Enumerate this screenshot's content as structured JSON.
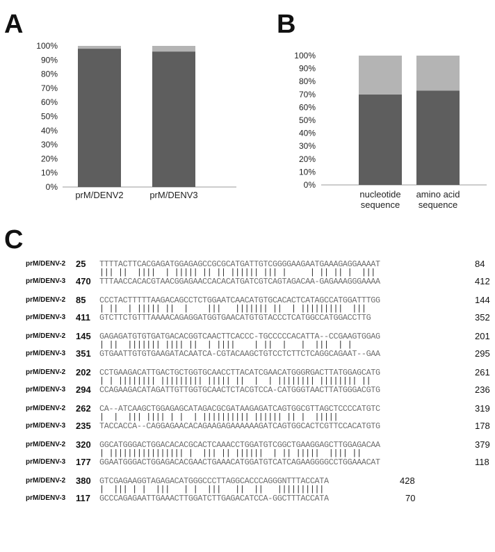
{
  "panels": {
    "a": "A",
    "b": "B",
    "c": "C"
  },
  "chart_data": [
    {
      "type": "bar",
      "stacked": true,
      "categories": [
        "prM/DENV2",
        "prM/DENV3"
      ],
      "series": [
        {
          "values": [
            98,
            96
          ],
          "color": "#5e5e5e"
        },
        {
          "values": [
            2,
            4
          ],
          "color": "#b4b4b4"
        }
      ],
      "ylim": [
        0,
        100
      ],
      "yticks": [
        "0%",
        "10%",
        "20%",
        "30%",
        "40%",
        "50%",
        "60%",
        "70%",
        "80%",
        "90%",
        "100%"
      ],
      "title": "",
      "xlabel": "",
      "ylabel": "",
      "grid": false
    },
    {
      "type": "bar",
      "stacked": true,
      "categories": [
        "nucleotide sequence",
        "amino acid sequence"
      ],
      "category_lines": [
        [
          "nucleotide",
          "sequence"
        ],
        [
          "amino acid",
          "sequence"
        ]
      ],
      "series": [
        {
          "values": [
            70,
            73
          ],
          "color": "#5e5e5e"
        },
        {
          "values": [
            30,
            27
          ],
          "color": "#b4b4b4"
        }
      ],
      "ylim": [
        0,
        100
      ],
      "yticks": [
        "0%",
        "10%",
        "20%",
        "30%",
        "40%",
        "50%",
        "60%",
        "70%",
        "80%",
        "90%",
        "100%"
      ],
      "title": "",
      "xlabel": "",
      "ylabel": "",
      "grid": false
    }
  ],
  "alignment": {
    "blocks": [
      {
        "name1": "prM/DENV-2",
        "start1": "25",
        "seq1": "TTTTACTTCACGAGATGGAGAGCCGCGCATGATTGTCGGGGAAGAATGAAAGAGGAAAAT",
        "end1": "84",
        "bars": "||| ||  ||||  | ||||| || || |||||| ||| |     | || || |  |||",
        "name2": "prM/DENV-3",
        "start2": "470",
        "seq2": "TTTAACCACACGTAACGGAGAACCACACATGATCGTCAGTAGACAA-GAGAAAGGGAAAA",
        "end2": "412"
      },
      {
        "name1": "prM/DENV-2",
        "start1": "85",
        "seq1": "CCCTACTTTTTAAGACAGCCTCTGGAATCAACATGTGCACACTCATAGCCATGGATTTGG",
        "end1": "144",
        "bars": "| ||  | ||||| ||  |    |||   ||||||| ||  | |||||||||  |||",
        "name2": "prM/DENV-3",
        "start2": "411",
        "seq2": "GTCTTCTGTTTAAAACAGAGGATGGTGAACATGTGTACCCTCATGGCCATGGACCTTG",
        "end2": "352"
      },
      {
        "name1": "prM/DENV-2",
        "start1": "145",
        "seq1": "GAGAGATGTGTGATGACACGGTCAACTTCACCC-TGCCCCCACATTA--CCGAAGTGGAG",
        "end1": "201",
        "bars": "| ||  ||||||| |||| ||  | ||||    | ||  |   |  |||  | |",
        "name2": "prM/DENV-3",
        "start2": "351",
        "seq2": "GTGAATTGTGTGAAGATACAATCA-CGTACAAGCTGTCCTCTTCTCAGGCAGAAT--GAA",
        "end2": "295"
      },
      {
        "name1": "prM/DENV-2",
        "start1": "202",
        "seq1": "CCTGAAGACATTGACTGCTGGTGCAACCTTACATCGAACATGGGRGACTTATGGAGCATG",
        "end1": "261",
        "bars": "| | |||||||| ||||||||| ||||| ||  |  | |||||||| |||||||| ||",
        "name2": "prM/DENV-3",
        "start2": "294",
        "seq2": "CCAGAAGACATAGATTGTTGGTGCAACTCTACGTCCA-CATGGGTAACTTATGGGACGTG",
        "end2": "236"
      },
      {
        "name1": "prM/DENV-2",
        "start1": "262",
        "seq1": "CA--ATCAAGCTGGAGAGCATAGACGCGATAAGAGATCAGTGGCGTTAGCTCCCCATGTC",
        "end1": "319",
        "bars": "|  |  ||| |||| | |  | |||||||||| |||||| || |  |||||",
        "name2": "prM/DENV-3",
        "start2": "235",
        "seq2": "TACCACCA--CAGGAGAACACAGAAGAGAAAAAAGATCAGTGGCACTCGTTCCACATGTG",
        "end2": "178"
      },
      {
        "name1": "prM/DENV-2",
        "start1": "320",
        "seq1": "GGCATGGGACTGGACACACGCACTCAAACCTGGATGTCGGCTGAAGGAGCTTGGAGACAA",
        "end1": "379",
        "bars": "| |||||||||||||||| |  ||| || ||||||  | || |||||  |||| ||",
        "name2": "prM/DENV-3",
        "start2": "177",
        "seq2": "GGAATGGGACTGGAGACACGAACTGAAACATGGATGTCATCAGAAGGGGCCTGGAAACAT",
        "end2": "118"
      },
      {
        "name1": "prM/DENV-2",
        "start1": "380",
        "seq1": "GTCGAGAAGGTAGAGACATGGGCCCTTAGGCACCCAGGGNTTTACCATA",
        "end1": "428",
        "bars": "|  ||| | |  |||   | |  |||   ||  ||   ||||||||||",
        "name2": "prM/DENV-3",
        "start2": "117",
        "seq2": "GCCCAGAGAATTGAAACTTGGATCTTGAGACATCCA-GGCTTTACCATA",
        "end2": "70"
      }
    ]
  }
}
